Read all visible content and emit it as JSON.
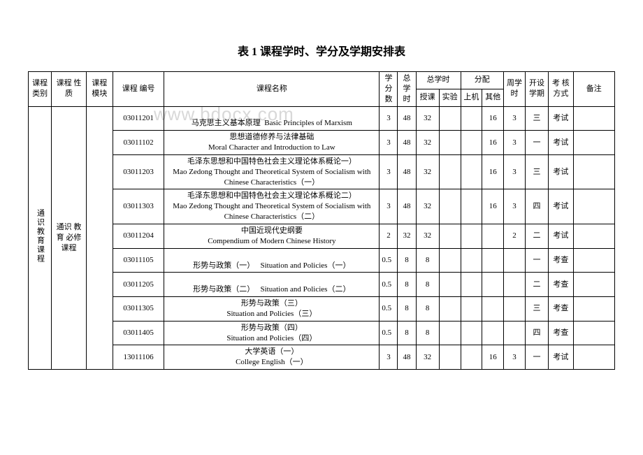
{
  "title": "表 1 课程学时、学分及学期安排表",
  "watermark": "www.bdocx.com",
  "headers": {
    "category": "课程 类别",
    "nature": "课程 性质",
    "module": "课程模块",
    "code": "课程 编号",
    "name": "课程名称",
    "credits": "学分数",
    "totalHours": "总学时",
    "totalHoursDist": "总学时",
    "distribution": "分配",
    "lecture": "授课",
    "experiment": "实验",
    "computer": "上机",
    "other": "其他",
    "weeklyHours": "周学时",
    "semester": "开设学期",
    "assessment": "考 核方式",
    "remarks": "备注"
  },
  "category": "通识教育课程",
  "nature": "通识 教育 必修课程",
  "semesters": {
    "1": "一",
    "2": "二",
    "3": "三",
    "4": "四"
  },
  "assess": {
    "exam": "考试",
    "check": "考查"
  },
  "rows": [
    {
      "code": "03011201",
      "cn": "马克思主义基本原理",
      "en": "Basic Principles of Marxism",
      "credits": "3",
      "total": "48",
      "lecture": "32",
      "exp": "",
      "comp": "",
      "other": "16",
      "weekly": "3",
      "sem": "三",
      "assess": "考试"
    },
    {
      "code": "03011102",
      "cn": "思想道德修养与法律基础",
      "en": "Moral Character and Introduction to Law",
      "credits": "3",
      "total": "48",
      "lecture": "32",
      "exp": "",
      "comp": "",
      "other": "16",
      "weekly": "3",
      "sem": "一",
      "assess": "考试"
    },
    {
      "code": "03011203",
      "cn": "毛泽东思想和中国特色社会主义理论体系概论一）",
      "en": "Mao Zedong Thought and Theoretical System of Socialism with Chinese Characteristics（一）",
      "credits": "3",
      "total": "48",
      "lecture": "32",
      "exp": "",
      "comp": "",
      "other": "16",
      "weekly": "3",
      "sem": "三",
      "assess": "考试"
    },
    {
      "code": "03011303",
      "cn": "毛泽东思想和中国特色社会主义理论体系概论二）",
      "en": "Mao Zedong Thought and Theoretical System of Socialism with Chinese Characteristics（二）",
      "credits": "3",
      "total": "48",
      "lecture": "32",
      "exp": "",
      "comp": "",
      "other": "16",
      "weekly": "3",
      "sem": "四",
      "assess": "考试"
    },
    {
      "code": "03011204",
      "cn": "中国近现代史纲要",
      "en": "Compendium of Modern Chinese History",
      "credits": "2",
      "total": "32",
      "lecture": "32",
      "exp": "",
      "comp": "",
      "other": "",
      "weekly": "2",
      "sem": "二",
      "assess": "考试"
    },
    {
      "code": "03011105",
      "cn": "形势与政策（一）",
      "en": "Situation and Policies（一）",
      "credits": "0.5",
      "total": "8",
      "lecture": "8",
      "exp": "",
      "comp": "",
      "other": "",
      "weekly": "",
      "sem": "一",
      "assess": "考查",
      "inline": true
    },
    {
      "code": "03011205",
      "cn": "形势与政策（二）",
      "en": "Situation and Policies（二）",
      "credits": "0.5",
      "total": "8",
      "lecture": "8",
      "exp": "",
      "comp": "",
      "other": "",
      "weekly": "",
      "sem": "二",
      "assess": "考查",
      "inline": true
    },
    {
      "code": "03011305",
      "cn": "形势与政策（三）",
      "en": "Situation and Policies（三）",
      "credits": "0.5",
      "total": "8",
      "lecture": "8",
      "exp": "",
      "comp": "",
      "other": "",
      "weekly": "",
      "sem": "三",
      "assess": "考查"
    },
    {
      "code": "03011405",
      "cn": "形势与政策（四）",
      "en": "Situation and Policies（四）",
      "credits": "0.5",
      "total": "8",
      "lecture": "8",
      "exp": "",
      "comp": "",
      "other": "",
      "weekly": "",
      "sem": "四",
      "assess": "考查"
    },
    {
      "code": "13011106",
      "cn": "大学英语（一）",
      "en": "College English（一）",
      "credits": "3",
      "total": "48",
      "lecture": "32",
      "exp": "",
      "comp": "",
      "other": "16",
      "weekly": "3",
      "sem": "一",
      "assess": "考试"
    }
  ],
  "colWidths": {
    "category": 28,
    "nature": 42,
    "module": 32,
    "code": 62,
    "name": 260,
    "credits": 22,
    "total": 22,
    "lecture": 28,
    "experiment": 26,
    "computer": 26,
    "other": 26,
    "weekly": 26,
    "semester": 28,
    "assessment": 30,
    "remarks": 50
  }
}
